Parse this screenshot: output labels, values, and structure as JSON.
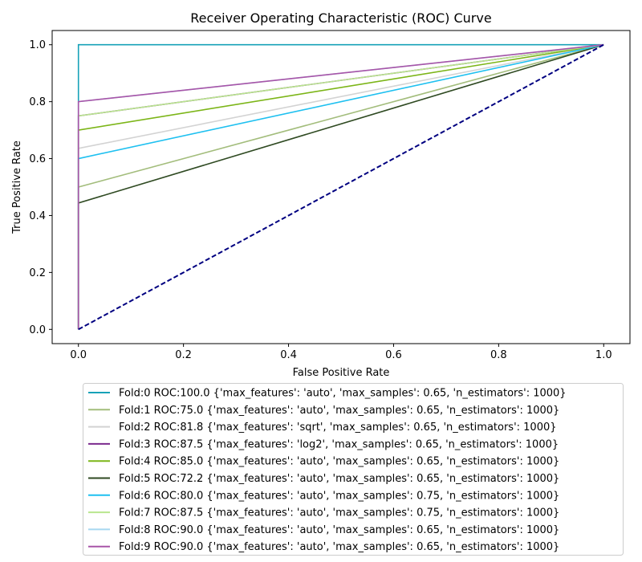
{
  "chart_data": {
    "type": "line",
    "title": "Receiver Operating Characteristic (ROC) Curve",
    "xlabel": "False Positive Rate",
    "ylabel": "True Positive Rate",
    "xlim": [
      -0.05,
      1.05
    ],
    "ylim": [
      -0.05,
      1.05
    ],
    "xticks": [
      0.0,
      0.2,
      0.4,
      0.6,
      0.8,
      1.0
    ],
    "yticks": [
      0.0,
      0.2,
      0.4,
      0.6,
      0.8,
      1.0
    ],
    "xtick_labels": [
      "0.0",
      "0.2",
      "0.4",
      "0.6",
      "0.8",
      "1.0"
    ],
    "ytick_labels": [
      "0.0",
      "0.2",
      "0.4",
      "0.6",
      "0.8",
      "1.0"
    ],
    "grid": false,
    "legend_placement": "below plot",
    "series": [
      {
        "name": "Fold:0 ROC:100.0 {'max_features': 'auto', 'max_samples': 0.65, 'n_estimators': 1000}",
        "color": "#17a2b8",
        "x": [
          0,
          0,
          1
        ],
        "y": [
          0,
          1.0,
          1
        ]
      },
      {
        "name": "Fold:1 ROC:75.0 {'max_features': 'auto', 'max_samples': 0.65, 'n_estimators': 1000}",
        "color": "#a3bd7c",
        "x": [
          0,
          0,
          1
        ],
        "y": [
          0,
          0.5,
          1
        ]
      },
      {
        "name": "Fold:2 ROC:81.8 {'max_features': 'sqrt', 'max_samples': 0.65, 'n_estimators': 1000}",
        "color": "#d3d3d3",
        "x": [
          0,
          0,
          1
        ],
        "y": [
          0,
          0.636,
          1
        ]
      },
      {
        "name": "Fold:3 ROC:87.5 {'max_features': 'log2', 'max_samples': 0.65, 'n_estimators': 1000}",
        "color": "#7b2a8e",
        "x": [
          0,
          0,
          1
        ],
        "y": [
          0,
          0.75,
          1
        ]
      },
      {
        "name": "Fold:4 ROC:85.0 {'max_features': 'auto', 'max_samples': 0.65, 'n_estimators': 1000}",
        "color": "#7cb518",
        "x": [
          0,
          0,
          1
        ],
        "y": [
          0,
          0.7,
          1
        ]
      },
      {
        "name": "Fold:5 ROC:72.2 {'max_features': 'auto', 'max_samples': 0.65, 'n_estimators': 1000}",
        "color": "#2f4a22",
        "x": [
          0,
          0,
          1
        ],
        "y": [
          0,
          0.444,
          1
        ]
      },
      {
        "name": "Fold:6 ROC:80.0 {'max_features': 'auto', 'max_samples': 0.75, 'n_estimators': 1000}",
        "color": "#1ec0f0",
        "x": [
          0,
          0,
          1
        ],
        "y": [
          0,
          0.6,
          1
        ]
      },
      {
        "name": "Fold:7 ROC:87.5 {'max_features': 'auto', 'max_samples': 0.75, 'n_estimators': 1000}",
        "color": "#b9e68e",
        "x": [
          0,
          0,
          1
        ],
        "y": [
          0,
          0.75,
          1
        ]
      },
      {
        "name": "Fold:8 ROC:90.0 {'max_features': 'auto', 'max_samples': 0.65, 'n_estimators': 1000}",
        "color": "#a6d8f0",
        "x": [
          0,
          0,
          1
        ],
        "y": [
          0,
          0.8,
          1
        ]
      },
      {
        "name": "Fold:9 ROC:90.0 {'max_features': 'auto', 'max_samples': 0.65, 'n_estimators': 1000}",
        "color": "#a855a8",
        "x": [
          0,
          0,
          1
        ],
        "y": [
          0,
          0.8,
          1
        ]
      }
    ],
    "reference_line": {
      "x": [
        0,
        1
      ],
      "y": [
        0,
        1
      ],
      "color": "#000080",
      "style": "dashed"
    }
  }
}
